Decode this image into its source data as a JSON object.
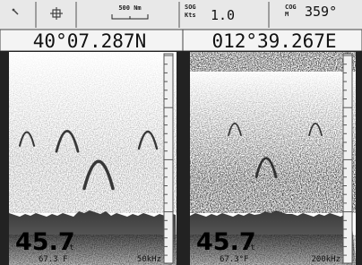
{
  "header": {
    "scale": "500 Nm",
    "sog_label": "SOG",
    "sog_unit": "Kts",
    "sog_value": "1.0",
    "cog_label": "COG",
    "cog_unit": "M",
    "cog_value": "359°",
    "latitude": "40°07.287N",
    "longitude": "012°39.267E"
  },
  "panels": [
    {
      "depth": "45.7",
      "depth_unit": "Ft",
      "temperature": "67.3 F",
      "frequency": "50kHz"
    },
    {
      "depth": "45.7",
      "depth_unit": "Ft",
      "temperature": "67.3°F",
      "frequency": "200kHz"
    }
  ]
}
